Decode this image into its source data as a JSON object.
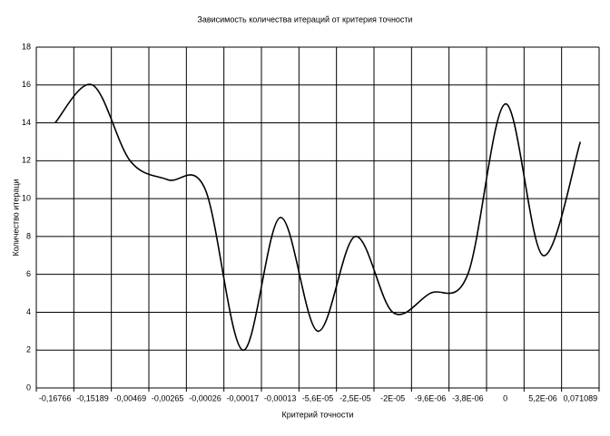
{
  "chart_data": {
    "type": "line",
    "title": "Зависимость количества итераций от критерия точности",
    "x_label": "Критерий точности",
    "y_label": "Количество итераци",
    "categories": [
      "-0,16766",
      "-0,15189",
      "-0,00469",
      "-0,00265",
      "-0,00026",
      "-0,00017",
      "-0,00013",
      "-5,6E-05",
      "-2,5E-05",
      "-2E-05",
      "-9,6E-06",
      "-3,8E-06",
      "0",
      "5,2E-06",
      "0,071089"
    ],
    "series": [
      {
        "name": "Количество итераци",
        "color": "#000000",
        "values": [
          14,
          16,
          12,
          11,
          10.5,
          2,
          9,
          3,
          8,
          4,
          5,
          6,
          15,
          7,
          13
        ]
      }
    ],
    "ylim": [
      0,
      18
    ],
    "yticks": [
      0,
      2,
      4,
      6,
      8,
      10,
      12,
      14,
      16,
      18
    ],
    "grid": true,
    "smooth": true
  }
}
